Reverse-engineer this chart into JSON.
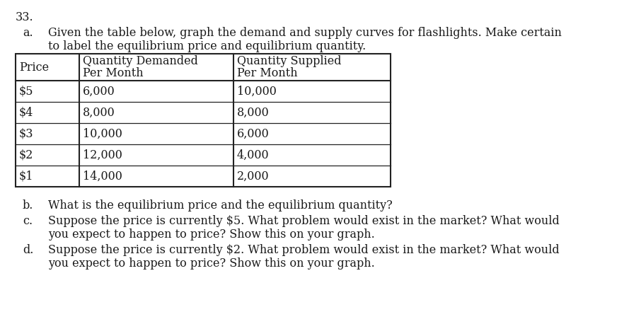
{
  "question_number": "33.",
  "part_a_label": "a.",
  "part_a_text_line1": "Given the table below, graph the demand and supply curves for flashlights. Make certain",
  "part_a_text_line2": "to label the equilibrium price and equilibrium quantity.",
  "table_header_col0": "Price",
  "table_header_col1_line1": "Quantity Demanded",
  "table_header_col1_line2": "Per Month",
  "table_header_col2_line1": "Quantity Supplied",
  "table_header_col2_line2": "Per Month",
  "table_rows": [
    [
      "$5",
      "6,000",
      "10,000"
    ],
    [
      "$4",
      "8,000",
      "8,000"
    ],
    [
      "$3",
      "10,000",
      "6,000"
    ],
    [
      "$2",
      "12,000",
      "4,000"
    ],
    [
      "$1",
      "14,000",
      "2,000"
    ]
  ],
  "part_b_label": "b.",
  "part_b_text": "What is the equilibrium price and the equilibrium quantity?",
  "part_c_label": "c.",
  "part_c_text_line1": "Suppose the price is currently $5. What problem would exist in the market? What would",
  "part_c_text_line2": "you expect to happen to price? Show this on your graph.",
  "part_d_label": "d.",
  "part_d_text_line1": "Suppose the price is currently $2. What problem would exist in the market? What would",
  "part_d_text_line2": "you expect to happen to price? Show this on your graph.",
  "font_size": 11.5,
  "background_color": "#ffffff",
  "text_color": "#1a1a1a",
  "table_border_color": "#222222",
  "fig_width": 8.89,
  "fig_height": 4.58,
  "dpi": 100
}
